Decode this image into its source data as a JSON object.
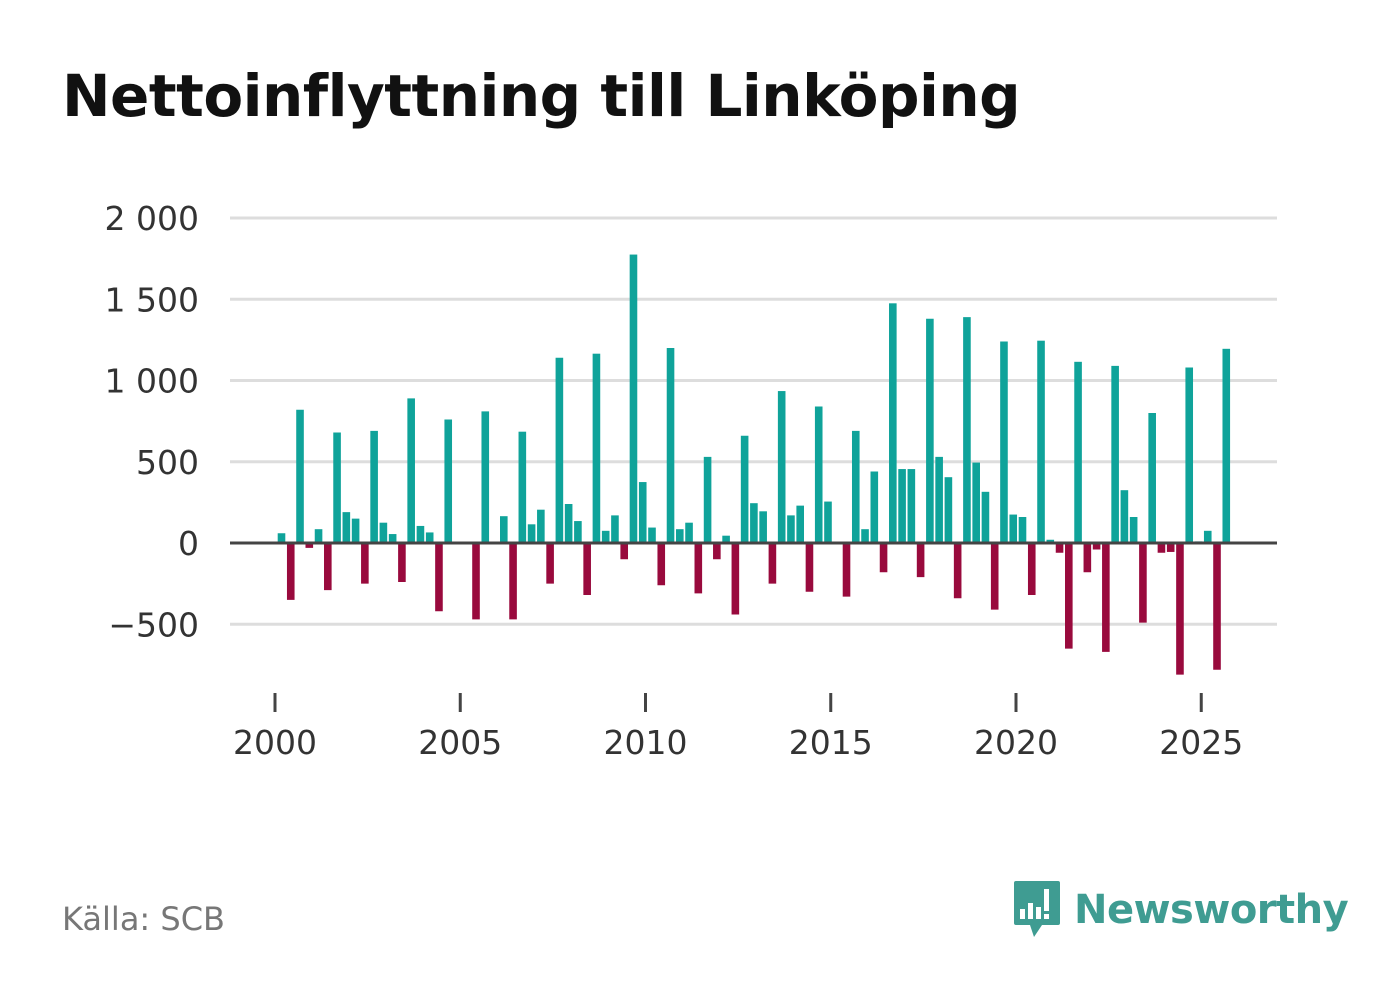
{
  "title": "Nettoinflyttning till Linköping",
  "source": "Källa: SCB",
  "brand": {
    "name": "Newsworthy",
    "icon": "newsworthy-logo-icon",
    "color": "#3f9c92"
  },
  "colors": {
    "positive": "#0fa39a",
    "negative": "#990a3d",
    "grid": "#dddddd",
    "zero_line": "#444444",
    "text": "#333333"
  },
  "chart_data": {
    "type": "bar",
    "title": "Nettoinflyttning till Linköping",
    "xlabel": "",
    "ylabel": "",
    "ylim": [
      -820,
      2000
    ],
    "xlim": [
      1998.25,
      2026.6
    ],
    "yticks": [
      -500,
      0,
      500,
      1000,
      1500,
      2000
    ],
    "ytick_labels": [
      "−500",
      "0",
      "500",
      "1 000",
      "1 500",
      "2 000"
    ],
    "xticks": [
      2000,
      2005,
      2010,
      2015,
      2020,
      2025
    ],
    "xtick_labels": [
      "2000",
      "2005",
      "2010",
      "2015",
      "2020",
      "2025"
    ],
    "grid": true,
    "frequency": "quarterly",
    "start": 2000.0,
    "step": 0.25,
    "values": [
      60,
      -350,
      820,
      -30,
      85,
      -290,
      680,
      190,
      150,
      -250,
      690,
      125,
      55,
      -240,
      890,
      105,
      65,
      -420,
      760,
      0,
      0,
      -470,
      810,
      0,
      165,
      -470,
      685,
      115,
      205,
      -250,
      1140,
      240,
      135,
      -320,
      1165,
      75,
      170,
      -100,
      1775,
      375,
      95,
      -260,
      1200,
      85,
      125,
      -310,
      530,
      -100,
      45,
      -440,
      660,
      245,
      195,
      -250,
      935,
      170,
      230,
      -300,
      840,
      255,
      0,
      -330,
      690,
      85,
      440,
      -180,
      1475,
      455,
      455,
      -210,
      1380,
      530,
      405,
      -340,
      1390,
      495,
      315,
      -410,
      1240,
      175,
      160,
      -320,
      1245,
      20,
      -60,
      -650,
      1115,
      -180,
      -40,
      -670,
      1090,
      325,
      160,
      -490,
      800,
      -60,
      -55,
      -810,
      1080,
      10,
      75,
      -780,
      1195
    ]
  }
}
